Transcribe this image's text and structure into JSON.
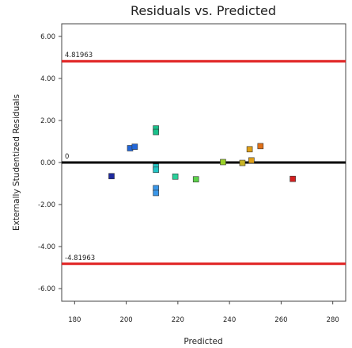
{
  "chart_data": {
    "type": "scatter",
    "title": "Residuals vs. Predicted",
    "xlabel": "Predicted",
    "ylabel": "Externally Studentized Residuals",
    "xlim": [
      175,
      285
    ],
    "ylim": [
      -6.6,
      6.6
    ],
    "x_ticks": [
      180,
      200,
      220,
      240,
      260,
      280
    ],
    "y_ticks": [
      -6,
      -4,
      -2,
      0,
      2,
      4,
      6
    ],
    "x_tick_labels": [
      "180",
      "200",
      "220",
      "240",
      "260",
      "280"
    ],
    "y_tick_labels": [
      "-6.00",
      "-4.00",
      "-2.00",
      "0.00",
      "2.00",
      "4.00",
      "6.00"
    ],
    "grid": false,
    "reference_lines": [
      {
        "y": 4.81963,
        "label": "4.81963",
        "color": "#e02020"
      },
      {
        "y": 0,
        "label": "0",
        "color": "#000000"
      },
      {
        "y": -4.81963,
        "label": "-4.81963",
        "color": "#e02020"
      }
    ],
    "points": [
      {
        "x": 194.3,
        "y": -0.65,
        "color": "#1f2a9e"
      },
      {
        "x": 201.5,
        "y": 0.68,
        "color": "#2266d8"
      },
      {
        "x": 203.3,
        "y": 0.75,
        "color": "#2266d8"
      },
      {
        "x": 211.5,
        "y": 1.62,
        "color": "#19c08a"
      },
      {
        "x": 211.5,
        "y": 1.45,
        "color": "#19c08a"
      },
      {
        "x": 211.5,
        "y": -0.2,
        "color": "#22c4c4"
      },
      {
        "x": 211.5,
        "y": -0.35,
        "color": "#22c4c4"
      },
      {
        "x": 211.5,
        "y": -1.22,
        "color": "#3a96e8"
      },
      {
        "x": 211.5,
        "y": -1.45,
        "color": "#3a96e8"
      },
      {
        "x": 219.0,
        "y": -0.67,
        "color": "#2ad09a"
      },
      {
        "x": 227.0,
        "y": -0.8,
        "color": "#5cd24a"
      },
      {
        "x": 237.5,
        "y": 0.02,
        "color": "#9ad02a"
      },
      {
        "x": 245.0,
        "y": -0.02,
        "color": "#c8b424"
      },
      {
        "x": 247.8,
        "y": 0.63,
        "color": "#e0a018"
      },
      {
        "x": 248.5,
        "y": 0.1,
        "color": "#e0a018"
      },
      {
        "x": 252.0,
        "y": 0.78,
        "color": "#e07018"
      },
      {
        "x": 264.5,
        "y": -0.78,
        "color": "#d42020"
      }
    ]
  }
}
